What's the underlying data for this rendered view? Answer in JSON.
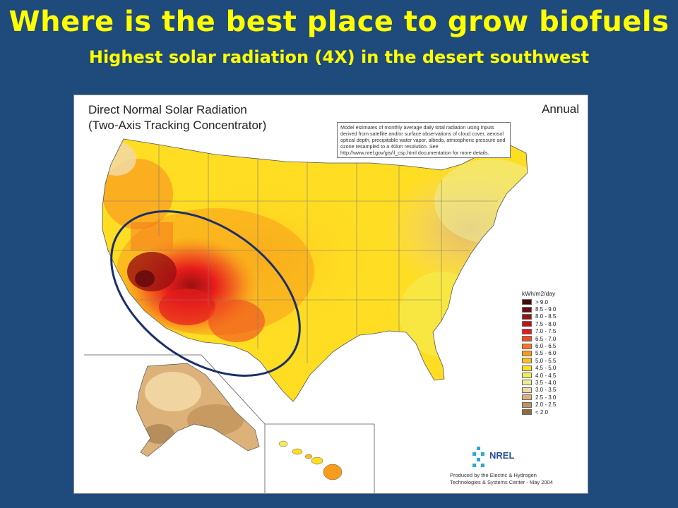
{
  "slide": {
    "title": "Where is the best place to grow biofuels",
    "subtitle": "Highest solar radiation (4X) in the desert southwest"
  },
  "map": {
    "title_line1": "Direct Normal Solar Radiation",
    "title_line2": "(Two-Axis Tracking Concentrator)",
    "period": "Annual",
    "note": "Model estimates of monthly average daily total radiation using inputs derived from satellite and/or surface observations of cloud cover, aerosol optical depth, precipitable water vapor, albedo, atmospheric pressure and ozone resampled to a 40km resolution. See http://www.nrel.gov/gis/il_csp.html documentation for more details.",
    "highlight_color": "#1b2f6a",
    "regions": [
      "contiguous-us",
      "alaska",
      "hawaii"
    ],
    "legend": {
      "title": "kWh/m2/day",
      "items": [
        {
          "label": "> 9.0",
          "color": "#4a0a0a"
        },
        {
          "label": "8.5 - 9.0",
          "color": "#6e0d0d"
        },
        {
          "label": "8.0 - 8.5",
          "color": "#9a1010"
        },
        {
          "label": "7.5 - 8.0",
          "color": "#c01414"
        },
        {
          "label": "7.0 - 7.5",
          "color": "#e61c1c"
        },
        {
          "label": "6.5 - 7.0",
          "color": "#f04a1e"
        },
        {
          "label": "6.0 - 6.5",
          "color": "#f5761e"
        },
        {
          "label": "5.5 - 6.0",
          "color": "#f89c1c"
        },
        {
          "label": "5.0 - 5.5",
          "color": "#fbbf1c"
        },
        {
          "label": "4.5 - 5.0",
          "color": "#ffdd22"
        },
        {
          "label": "4.0 - 4.5",
          "color": "#f3ee55"
        },
        {
          "label": "3.5 - 4.0",
          "color": "#ecec9a"
        },
        {
          "label": "3.0 - 3.5",
          "color": "#f2d8a4"
        },
        {
          "label": "2.5 - 3.0",
          "color": "#dcb27a"
        },
        {
          "label": "2.0 - 2.5",
          "color": "#c0935a"
        },
        {
          "label": "< 2.0",
          "color": "#8e6a3c"
        }
      ]
    },
    "logo_text": "NREL",
    "credit_line1": "Produced by the Electric & Hydrogen",
    "credit_line2": "Technologies & Systems Center - May 2004"
  }
}
